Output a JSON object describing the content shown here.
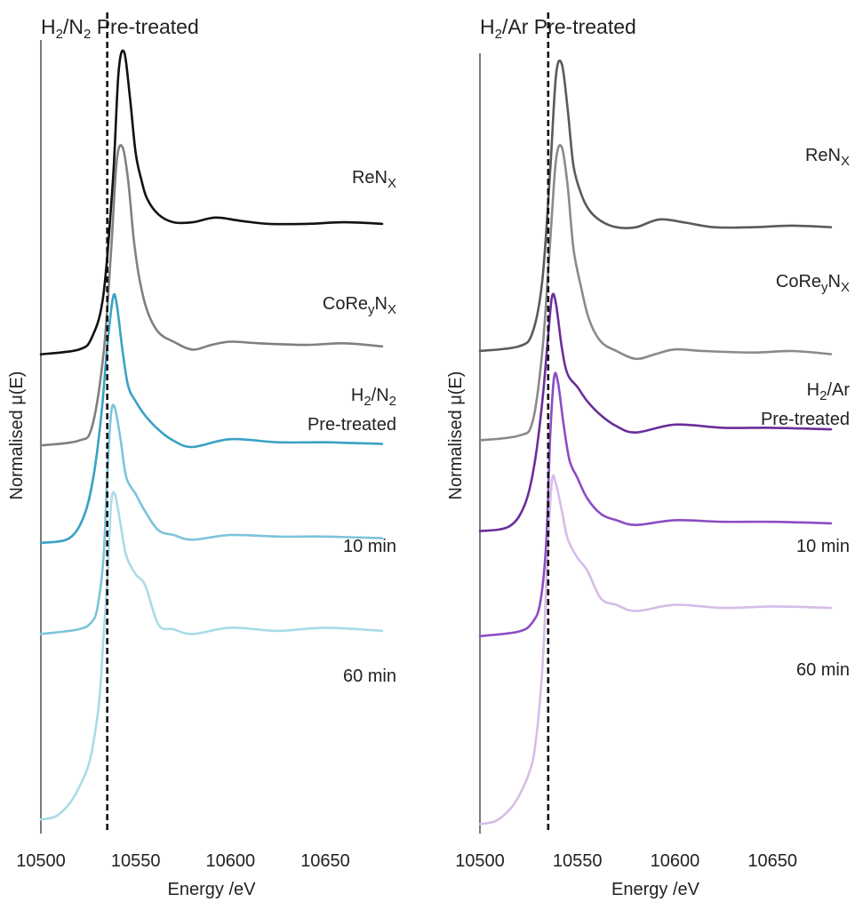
{
  "chart_data": [
    {
      "type": "line",
      "title": "H2/N2 Pre-treated",
      "xlabel": "Energy /eV",
      "ylabel": "Normalised μ(E)",
      "xlim": [
        10500,
        10680
      ],
      "x_ticks": [
        "10500",
        "10550",
        "10600",
        "10650"
      ],
      "reference_line_x": 10535,
      "stacked_offset": true,
      "grid": false,
      "series": [
        {
          "name": "ReNX",
          "label": [
            "ReN",
            "X"
          ],
          "color": "#111111",
          "x": [
            10500,
            10520,
            10527,
            10533,
            10538,
            10541,
            10544,
            10547,
            10550,
            10553,
            10556,
            10562,
            10570,
            10580,
            10592,
            10605,
            10620,
            10640,
            10660,
            10680
          ],
          "y": [
            1.2,
            1.23,
            1.31,
            1.58,
            2.31,
            3.0,
            3.12,
            2.83,
            2.48,
            2.31,
            2.19,
            2.09,
            2.04,
            2.04,
            2.07,
            2.05,
            2.03,
            2.03,
            2.04,
            2.03
          ]
        },
        {
          "name": "CoReyNX",
          "label": [
            "CoRe",
            "y",
            "N",
            "X"
          ],
          "color": "#808080",
          "x": [
            10500,
            10520,
            10527,
            10533,
            10537,
            10540,
            10543,
            10546,
            10549,
            10552,
            10556,
            10562,
            10570,
            10580,
            10590,
            10600,
            10615,
            10640,
            10660,
            10680
          ],
          "y": [
            0.62,
            0.65,
            0.74,
            1.2,
            1.85,
            2.43,
            2.52,
            2.31,
            1.93,
            1.68,
            1.48,
            1.34,
            1.28,
            1.23,
            1.26,
            1.28,
            1.27,
            1.26,
            1.27,
            1.25
          ]
        },
        {
          "name": "H2/N2 Pre-treated",
          "label_lines": [
            [
              "H",
              "2",
              "/N",
              "2"
            ],
            [
              "Pre-treated"
            ]
          ],
          "color": "#3aa2c3",
          "x": [
            10500,
            10515,
            10523,
            10528,
            10532,
            10535,
            10538,
            10540,
            10543,
            10546,
            10550,
            10555,
            10562,
            10570,
            10580,
            10600,
            10625,
            10650,
            10680
          ],
          "y": [
            0.0,
            0.03,
            0.18,
            0.44,
            0.83,
            1.25,
            1.56,
            1.52,
            1.23,
            1.0,
            0.9,
            0.81,
            0.72,
            0.65,
            0.61,
            0.66,
            0.64,
            0.64,
            0.63
          ]
        },
        {
          "name": "10 min",
          "label": [
            "10 min"
          ],
          "color": "#7cc4da",
          "x": [
            10500,
            10520,
            10527,
            10530,
            10533,
            10535,
            10537,
            10539,
            10542,
            10545,
            10550,
            10555,
            10562,
            10570,
            10580,
            10600,
            10625,
            10650,
            10680
          ],
          "y": [
            -0.58,
            -0.55,
            -0.5,
            -0.4,
            -0.1,
            0.42,
            0.82,
            0.86,
            0.66,
            0.42,
            0.31,
            0.2,
            0.08,
            0.05,
            0.02,
            0.05,
            0.04,
            0.04,
            0.03
          ]
        },
        {
          "name": "60 min",
          "label": [
            "60 min"
          ],
          "color": "#a9dbe8",
          "x": [
            10500,
            10508,
            10515,
            10520,
            10525,
            10528,
            10531,
            10533,
            10535,
            10537,
            10539,
            10542,
            10545,
            10550,
            10555,
            10562,
            10570,
            10580,
            10600,
            10625,
            10650,
            10680
          ],
          "y": [
            -1.76,
            -1.74,
            -1.66,
            -1.56,
            -1.42,
            -1.25,
            -0.98,
            -0.6,
            -0.25,
            0.24,
            0.31,
            0.12,
            -0.08,
            -0.2,
            -0.27,
            -0.52,
            -0.55,
            -0.58,
            -0.54,
            -0.56,
            -0.54,
            -0.56
          ]
        }
      ]
    },
    {
      "type": "line",
      "title": "H2/Ar Pre-treated",
      "xlabel": "Energy /eV",
      "ylabel": "Normalised μ(E)",
      "xlim": [
        10500,
        10680
      ],
      "x_ticks": [
        "10500",
        "10550",
        "10600",
        "10650"
      ],
      "reference_line_x": 10535,
      "stacked_offset": true,
      "grid": false,
      "series": [
        {
          "name": "ReNX",
          "label": [
            "ReN",
            "X"
          ],
          "color": "#5a5a5a",
          "x": [
            10500,
            10520,
            10527,
            10532,
            10536,
            10539,
            10542,
            10545,
            10548,
            10552,
            10556,
            10562,
            10570,
            10580,
            10592,
            10605,
            10620,
            10640,
            10660,
            10680
          ],
          "y": [
            1.1,
            1.13,
            1.22,
            1.55,
            2.25,
            2.86,
            2.93,
            2.64,
            2.28,
            2.1,
            2.0,
            1.93,
            1.89,
            1.89,
            1.94,
            1.92,
            1.89,
            1.89,
            1.9,
            1.89
          ]
        },
        {
          "name": "CoReyNX",
          "label": [
            "CoRe",
            "y",
            "N",
            "X"
          ],
          "color": "#8a8a8a",
          "x": [
            10500,
            10520,
            10527,
            10532,
            10536,
            10539,
            10542,
            10545,
            10548,
            10552,
            10556,
            10562,
            10570,
            10580,
            10590,
            10600,
            10615,
            10640,
            10660,
            10680
          ],
          "y": [
            0.53,
            0.56,
            0.65,
            1.1,
            1.8,
            2.32,
            2.4,
            2.15,
            1.75,
            1.5,
            1.3,
            1.16,
            1.1,
            1.05,
            1.08,
            1.11,
            1.1,
            1.09,
            1.1,
            1.08
          ]
        },
        {
          "name": "H2/Ar Pre-treated",
          "label_lines": [
            [
              "H",
              "2",
              "/Ar"
            ],
            [
              "Pre-treated"
            ]
          ],
          "color": "#6a2d9a",
          "x": [
            10500,
            10515,
            10523,
            10528,
            10532,
            10535,
            10537,
            10539,
            10542,
            10545,
            10550,
            10555,
            10562,
            10570,
            10580,
            10600,
            10625,
            10650,
            10680
          ],
          "y": [
            -0.05,
            -0.02,
            0.12,
            0.38,
            0.78,
            1.2,
            1.45,
            1.4,
            1.12,
            0.95,
            0.87,
            0.78,
            0.69,
            0.62,
            0.58,
            0.63,
            0.61,
            0.61,
            0.6
          ]
        },
        {
          "name": "10 min",
          "label": [
            "10 min"
          ],
          "color": "#8c4cc4",
          "x": [
            10500,
            10520,
            10527,
            10531,
            10534,
            10536,
            10538,
            10540,
            10543,
            10546,
            10550,
            10555,
            10562,
            10570,
            10580,
            10600,
            10625,
            10650,
            10680
          ],
          "y": [
            -0.72,
            -0.69,
            -0.63,
            -0.5,
            -0.12,
            0.55,
            0.93,
            0.9,
            0.62,
            0.4,
            0.29,
            0.16,
            0.06,
            0.02,
            -0.01,
            0.02,
            0.01,
            0.01,
            0.0
          ]
        },
        {
          "name": "60 min",
          "label": [
            "60 min"
          ],
          "color": "#d5bde9",
          "x": [
            10500,
            10508,
            10515,
            10520,
            10525,
            10528,
            10531,
            10533,
            10535,
            10537,
            10539,
            10542,
            10545,
            10550,
            10555,
            10562,
            10570,
            10580,
            10600,
            10625,
            10650,
            10680
          ],
          "y": [
            -1.92,
            -1.9,
            -1.83,
            -1.74,
            -1.6,
            -1.45,
            -1.1,
            -0.7,
            -0.1,
            0.28,
            0.25,
            0.08,
            -0.1,
            -0.22,
            -0.3,
            -0.48,
            -0.52,
            -0.56,
            -0.52,
            -0.54,
            -0.53,
            -0.54
          ]
        }
      ]
    }
  ]
}
